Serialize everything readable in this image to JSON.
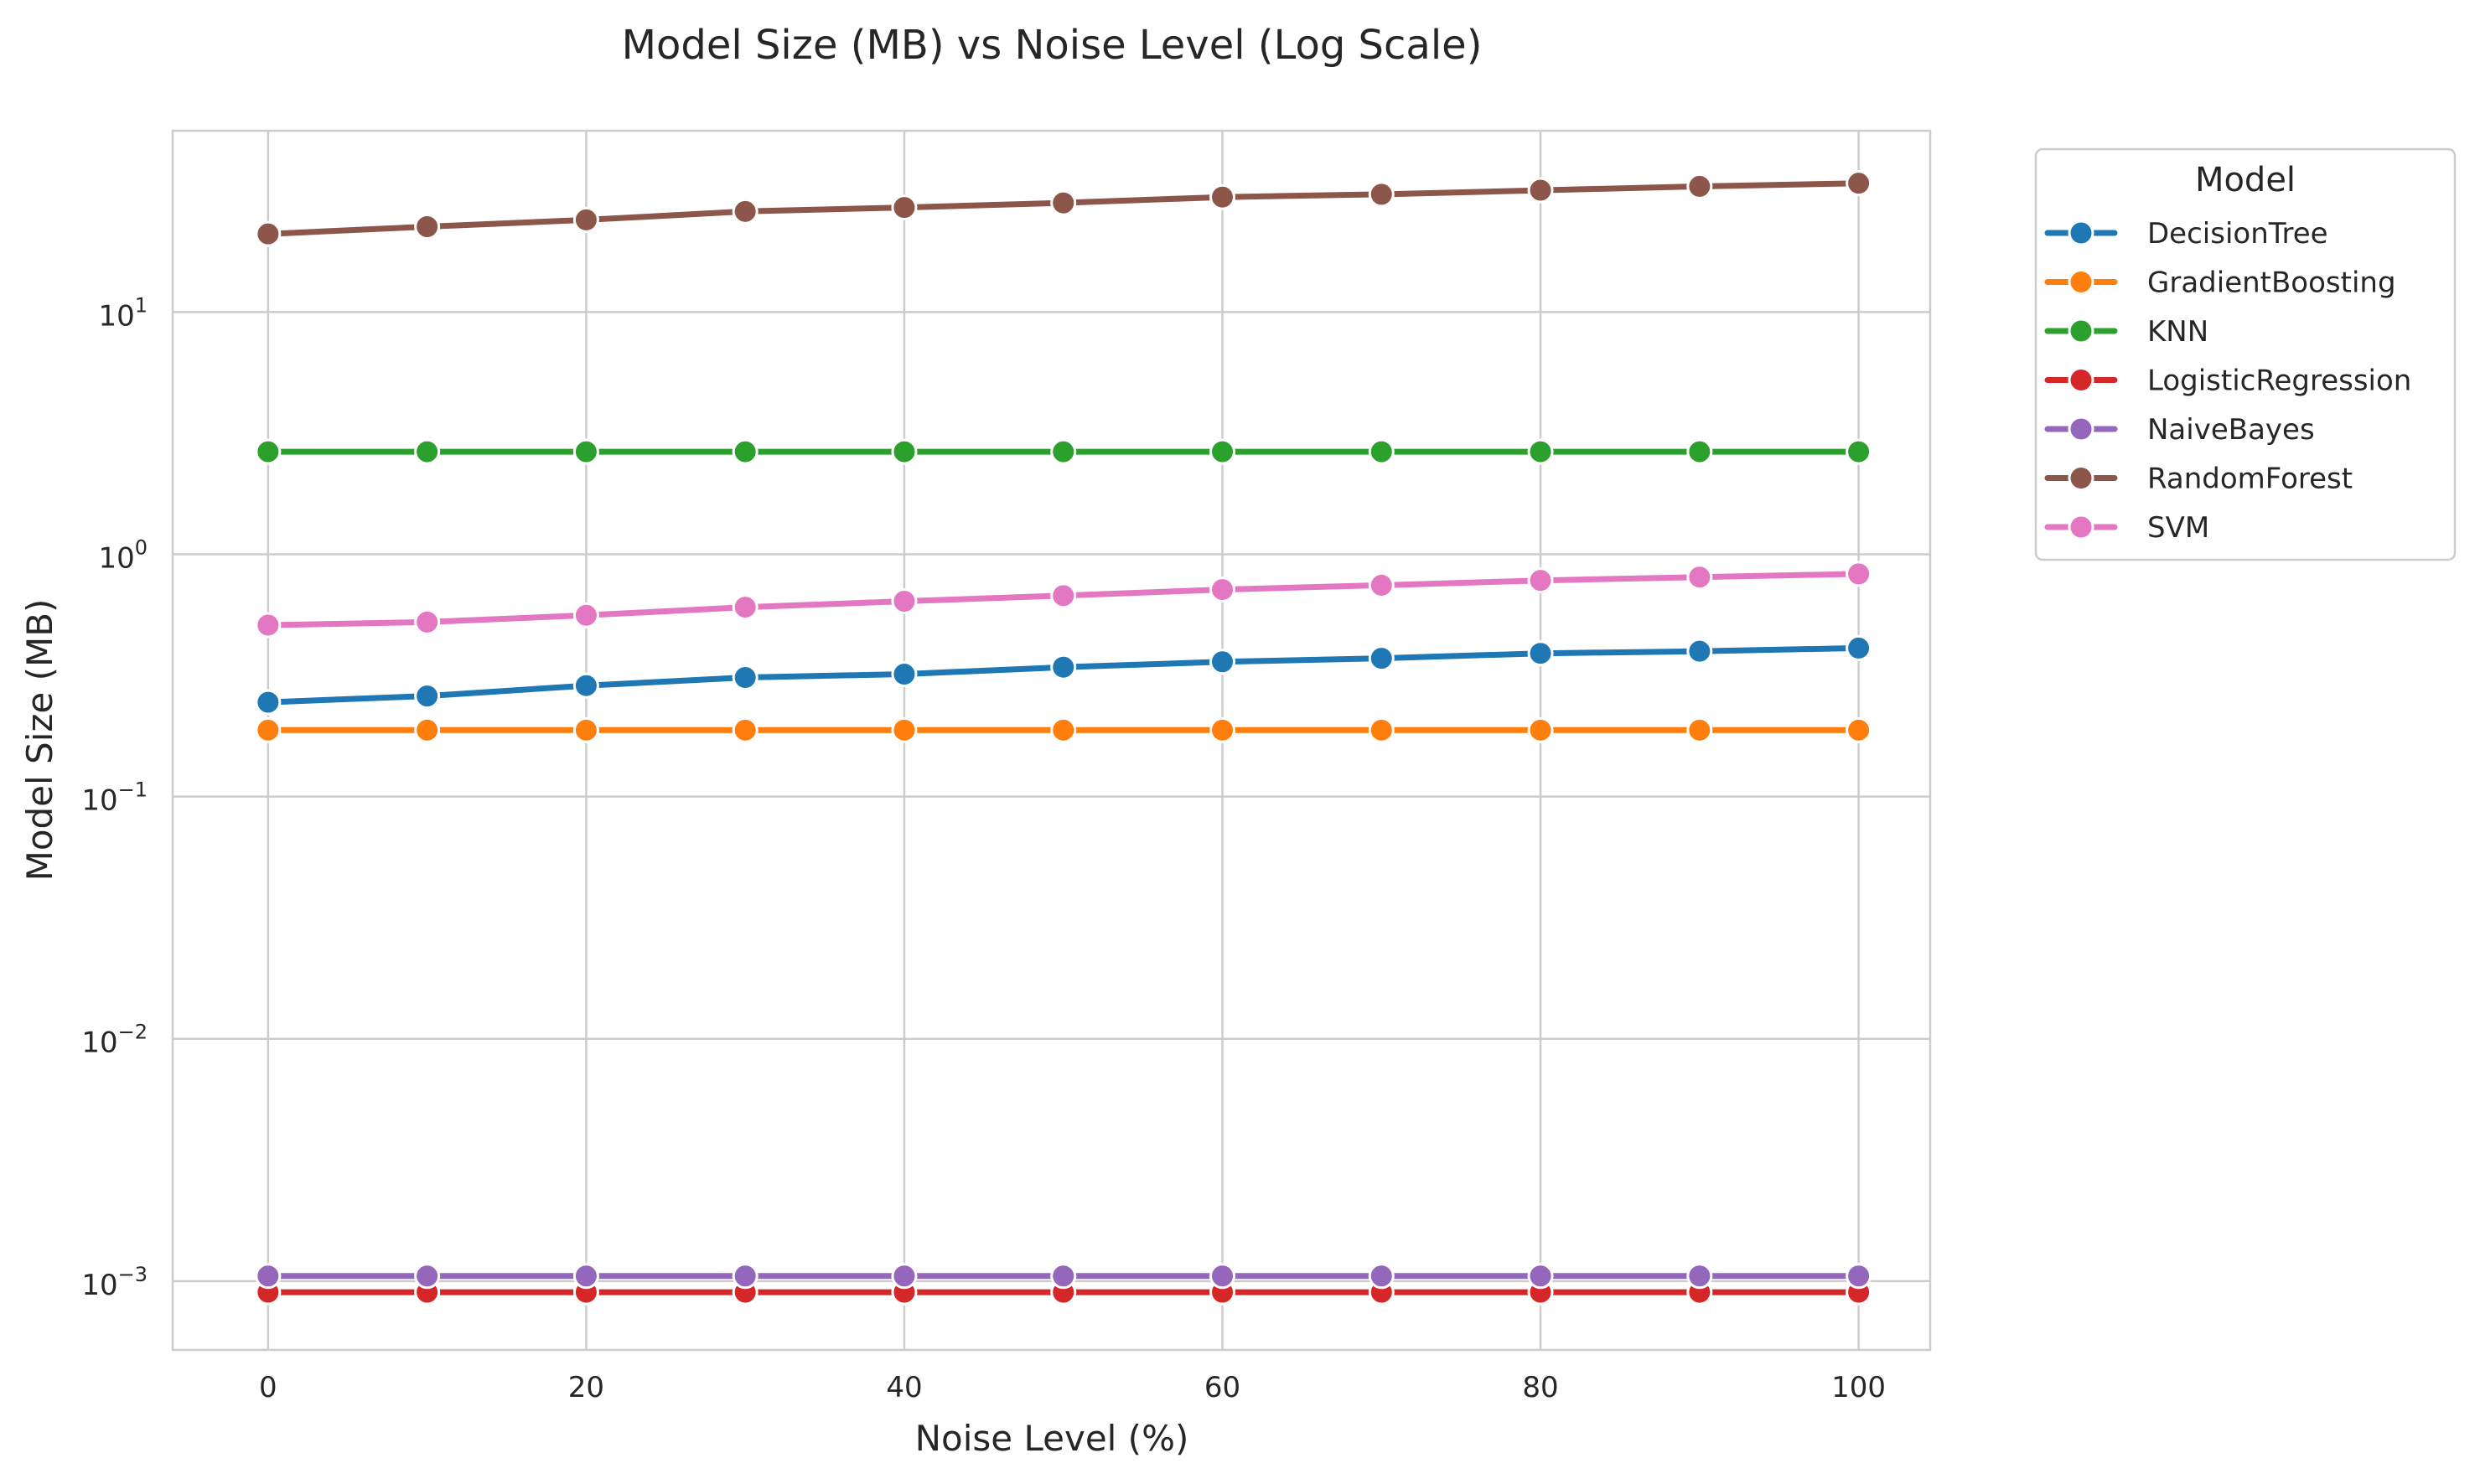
{
  "chart_data": {
    "type": "line",
    "title": "Model Size (MB) vs Noise Level (Log Scale)",
    "xlabel": "Noise Level (%)",
    "ylabel": "Model Size (MB)",
    "xlim": [
      -6,
      104.5
    ],
    "ylim": [
      0.00052,
      56
    ],
    "yscale": "log",
    "grid": true,
    "xticks": [
      0,
      20,
      40,
      60,
      80,
      100
    ],
    "xtick_labels": [
      "0",
      "20",
      "40",
      "60",
      "80",
      "100"
    ],
    "yticks": [
      0.001,
      0.01,
      0.1,
      1,
      10
    ],
    "ytick_base": "10",
    "ytick_exponents": [
      "−3",
      "−2",
      "−1",
      "0",
      "1"
    ],
    "legend": {
      "title": "Model",
      "position": "outside-top-right"
    },
    "x": [
      0,
      10,
      20,
      30,
      40,
      50,
      60,
      70,
      80,
      90,
      100
    ],
    "series": [
      {
        "name": "DecisionTree",
        "color": "#1f77b4",
        "values": [
          0.245,
          0.26,
          0.287,
          0.31,
          0.32,
          0.342,
          0.36,
          0.372,
          0.39,
          0.398,
          0.41
        ]
      },
      {
        "name": "GradientBoosting",
        "color": "#ff7f0e",
        "values": [
          0.188,
          0.188,
          0.188,
          0.188,
          0.188,
          0.188,
          0.188,
          0.188,
          0.188,
          0.188,
          0.188
        ]
      },
      {
        "name": "KNN",
        "color": "#2ca02c",
        "values": [
          2.65,
          2.65,
          2.65,
          2.65,
          2.65,
          2.65,
          2.65,
          2.65,
          2.65,
          2.65,
          2.65
        ]
      },
      {
        "name": "LogisticRegression",
        "color": "#d62728",
        "values": [
          0.0009,
          0.0009,
          0.0009,
          0.0009,
          0.0009,
          0.0009,
          0.0009,
          0.0009,
          0.0009,
          0.0009,
          0.0009
        ]
      },
      {
        "name": "NaiveBayes",
        "color": "#9467bd",
        "values": [
          0.00105,
          0.00105,
          0.00105,
          0.00105,
          0.00105,
          0.00105,
          0.00105,
          0.00105,
          0.00105,
          0.00105,
          0.00105
        ]
      },
      {
        "name": "RandomForest",
        "color": "#8c564b",
        "values": [
          21.0,
          22.5,
          24.0,
          26.0,
          27.0,
          28.2,
          29.8,
          30.6,
          31.8,
          33.0,
          34.0
        ]
      },
      {
        "name": "SVM",
        "color": "#e377c2",
        "values": [
          0.51,
          0.525,
          0.56,
          0.605,
          0.64,
          0.675,
          0.715,
          0.745,
          0.78,
          0.805,
          0.83
        ]
      }
    ]
  }
}
